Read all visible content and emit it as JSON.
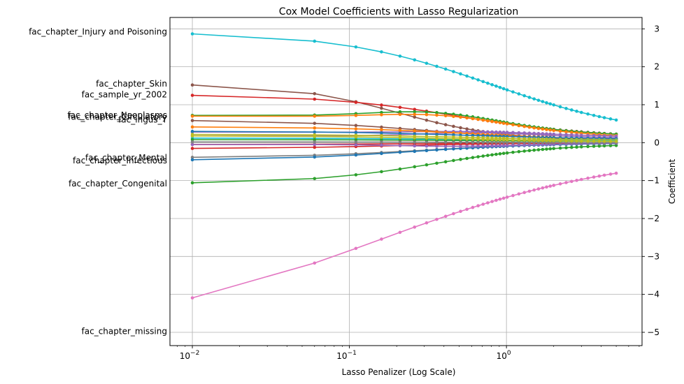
{
  "chart_data": {
    "type": "line",
    "title": "Cox Model Coefficients with Lasso Regularization",
    "xlabel": "Lasso Penalizer (Log Scale)",
    "ylabel": "Coefficient",
    "x_scale": "log",
    "xlim": [
      0.0072,
      7.3
    ],
    "ylim": [
      -5.35,
      3.3
    ],
    "x_ticks": [
      {
        "value": 0.01,
        "base": "10",
        "exp": "−2"
      },
      {
        "value": 0.1,
        "base": "10",
        "exp": "−1"
      },
      {
        "value": 1,
        "base": "10",
        "exp": "0"
      }
    ],
    "y_ticks": [
      -5,
      -4,
      -3,
      -2,
      -1,
      0,
      1,
      2,
      3
    ],
    "y_tick_side": "right",
    "grid": true,
    "x": [
      0.01,
      0.06,
      0.11,
      0.16,
      0.21,
      0.26,
      0.31,
      0.36,
      0.41,
      0.46,
      0.51,
      0.56,
      0.61,
      0.66,
      0.71,
      0.76,
      0.81,
      0.86,
      0.91,
      0.96,
      1.01,
      1.1,
      1.2,
      1.3,
      1.4,
      1.5,
      1.6,
      1.7,
      1.8,
      1.9,
      2.0,
      2.2,
      2.4,
      2.6,
      2.8,
      3.0,
      3.3,
      3.6,
      3.9,
      4.2,
      4.6,
      5.0
    ],
    "series": [
      {
        "name": "fac_chapter_Injury and Poisoning",
        "color": "#17becf",
        "start": 2.92,
        "end": 0.15,
        "mid": 0.8,
        "shape": 0.9
      },
      {
        "name": "fac_chapter_Skin",
        "color": "#8c564b",
        "start": 1.55,
        "end": 0.05,
        "mid": 0.2,
        "shape": 1.3
      },
      {
        "name": "fac_sample_yr_2002",
        "color": "#d62728",
        "start": 1.27,
        "end": 0.12,
        "mid": 0.5,
        "shape": 1.0
      },
      {
        "name": "fac_chapter_Neoplasms",
        "color": "#2ca02c",
        "start": 0.72,
        "end": 0.15,
        "mid": 1.0,
        "shape": 1.2,
        "hump": 0.2
      },
      {
        "name": "fac_chapter_Circulatory",
        "color": "#ff7f0e",
        "start": 0.7,
        "end": 0.1,
        "mid": 1.1,
        "shape": 1.2,
        "hump": 0.15
      },
      {
        "name": "fac_ingus_Y",
        "color": "#8c564b",
        "start": 0.6,
        "end": 0.05,
        "mid": 0.3,
        "shape": 1.0
      },
      {
        "name": "fac_chapter_Mental",
        "color": "#7f7f7f",
        "start": -0.4,
        "end": 0.0,
        "mid": 0.3,
        "shape": 1.0
      },
      {
        "name": "fac_chapter_Infectious",
        "color": "#1f77b4",
        "start": -0.47,
        "end": 0.0,
        "mid": 0.25,
        "shape": 1.0
      },
      {
        "name": "fac_chapter_Congenital",
        "color": "#2ca02c",
        "start": -1.08,
        "end": -0.02,
        "mid": 0.35,
        "shape": 1.1
      },
      {
        "name": "fac_chapter_missing",
        "color": "#e377c2",
        "start": -4.97,
        "end": -0.2,
        "mid": 0.15,
        "shape": 0.55
      },
      {
        "name": "",
        "color": "#9467bd",
        "start": 0.28,
        "end": 0.12,
        "mid": 2.0,
        "shape": 1.0,
        "hump": 0.05
      },
      {
        "name": "",
        "color": "#9467bd",
        "start": 0.18,
        "end": 0.1,
        "mid": 2.0,
        "shape": 1.0,
        "hump": 0.1
      },
      {
        "name": "",
        "color": "#ff7f0e",
        "start": 0.42,
        "end": 0.05,
        "mid": 0.6,
        "shape": 1.0
      },
      {
        "name": "",
        "color": "#1f77b4",
        "start": 0.3,
        "end": 0.08,
        "mid": 0.6,
        "shape": 1.0
      },
      {
        "name": "",
        "color": "#bcbd22",
        "start": 0.22,
        "end": 0.05,
        "mid": 0.6,
        "shape": 1.0
      },
      {
        "name": "",
        "color": "#17becf",
        "start": 0.12,
        "end": 0.04,
        "mid": 0.6,
        "shape": 1.0
      },
      {
        "name": "",
        "color": "#2ca02c",
        "start": 0.08,
        "end": 0.03,
        "mid": 0.6,
        "shape": 1.0
      },
      {
        "name": "",
        "color": "#d62728",
        "start": -0.05,
        "end": 0.0,
        "mid": 0.3,
        "shape": 1.0
      },
      {
        "name": "",
        "color": "#d62728",
        "start": -0.16,
        "end": 0.0,
        "mid": 0.2,
        "shape": 1.0
      },
      {
        "name": "",
        "color": "#9467bd",
        "start": -0.05,
        "end": 0.0,
        "mid": 1.5,
        "shape": 1.0,
        "hump": -0.06
      },
      {
        "name": "",
        "color": "#7f7f7f",
        "start": 0.02,
        "end": 0.0,
        "mid": 0.5,
        "shape": 1.0
      },
      {
        "name": "",
        "color": "#bcbd22",
        "start": 0.18,
        "end": 0.02,
        "mid": 0.5,
        "shape": 1.0
      }
    ],
    "labels": [
      {
        "text": "fac_chapter_Injury and Poisoning",
        "y": 2.92
      },
      {
        "text": "fac_chapter_Skin",
        "y": 1.55
      },
      {
        "text": "fac_sample_yr_2002",
        "y": 1.27
      },
      {
        "text": "fac_chapter_Neoplasms",
        "y": 0.72
      },
      {
        "text": "fac_chapter_Circulatory",
        "y": 0.68
      },
      {
        "text": "fac_ingus_Y",
        "y": 0.6
      },
      {
        "text": "fac_chapter_Mental",
        "y": -0.4
      },
      {
        "text": "fac_chapter_Infectious",
        "y": -0.47
      },
      {
        "text": "fac_chapter_Congenital",
        "y": -1.08
      },
      {
        "text": "fac_chapter_missing",
        "y": -4.97
      }
    ]
  }
}
